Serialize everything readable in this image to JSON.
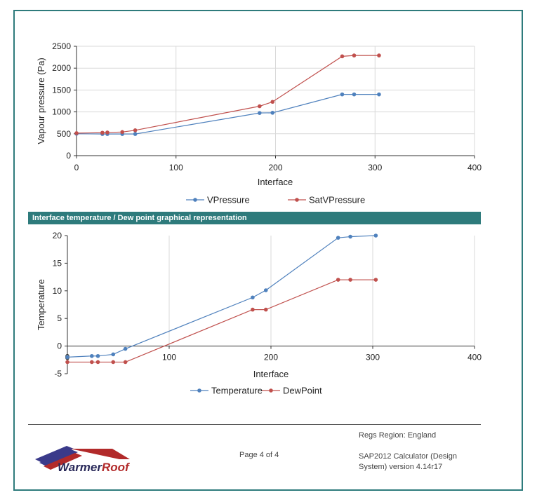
{
  "colors": {
    "accent": "#2e7b7c",
    "blue": "#4f81bd",
    "red": "#c0504d",
    "grid": "#d9d9d9"
  },
  "section": {
    "banner": "Interface temperature / Dew point graphical representation"
  },
  "footer": {
    "region": "Regs Region: England",
    "page": "Page 4 of 4",
    "version_line1": "SAP2012 Calculator (Design",
    "version_line2": "System) version 4.14r17",
    "logo_part1": "Warmer",
    "logo_part2": "Roof"
  },
  "chart_data": [
    {
      "type": "line",
      "title": "",
      "xlabel": "Interface",
      "ylabel": "Vapour pressure (Pa)",
      "xlim": [
        0,
        400
      ],
      "ylim": [
        0,
        2500
      ],
      "xticks": [
        0,
        100,
        200,
        300,
        400
      ],
      "yticks": [
        0,
        500,
        1000,
        1500,
        2000,
        2500
      ],
      "grid": true,
      "legend": "bottom",
      "series": [
        {
          "name": "VPressure",
          "color": "#4f81bd",
          "x": [
            0,
            26,
            31,
            46,
            59,
            184,
            197,
            267,
            279,
            304
          ],
          "y": [
            500,
            495,
            495,
            495,
            495,
            975,
            980,
            1400,
            1400,
            1400
          ]
        },
        {
          "name": "SatVPressure",
          "color": "#c0504d",
          "x": [
            0,
            26,
            31,
            46,
            59,
            184,
            197,
            267,
            279,
            304
          ],
          "y": [
            515,
            525,
            530,
            540,
            580,
            1130,
            1230,
            2270,
            2290,
            2290
          ]
        }
      ]
    },
    {
      "type": "line",
      "title": "",
      "xlabel": "Interface",
      "ylabel": "Temperature",
      "xlim": [
        0,
        400
      ],
      "ylim": [
        -5,
        20
      ],
      "xticks": [
        0,
        100,
        200,
        300,
        400
      ],
      "yticks": [
        -5,
        0,
        5,
        10,
        15,
        20
      ],
      "grid": true,
      "legend": "bottom",
      "series": [
        {
          "name": "Temperature",
          "color": "#4f81bd",
          "x": [
            0,
            24,
            30,
            45,
            57,
            182,
            195,
            266,
            278,
            303
          ],
          "y": [
            -2,
            -1.8,
            -1.8,
            -1.5,
            -0.5,
            8.8,
            10.1,
            19.6,
            19.8,
            20
          ]
        },
        {
          "name": "DewPoint",
          "color": "#c0504d",
          "x": [
            0,
            24,
            30,
            45,
            57,
            182,
            195,
            266,
            278,
            303
          ],
          "y": [
            -2.9,
            -2.9,
            -2.9,
            -2.9,
            -2.9,
            6.6,
            6.6,
            12,
            12,
            12
          ]
        }
      ]
    }
  ]
}
